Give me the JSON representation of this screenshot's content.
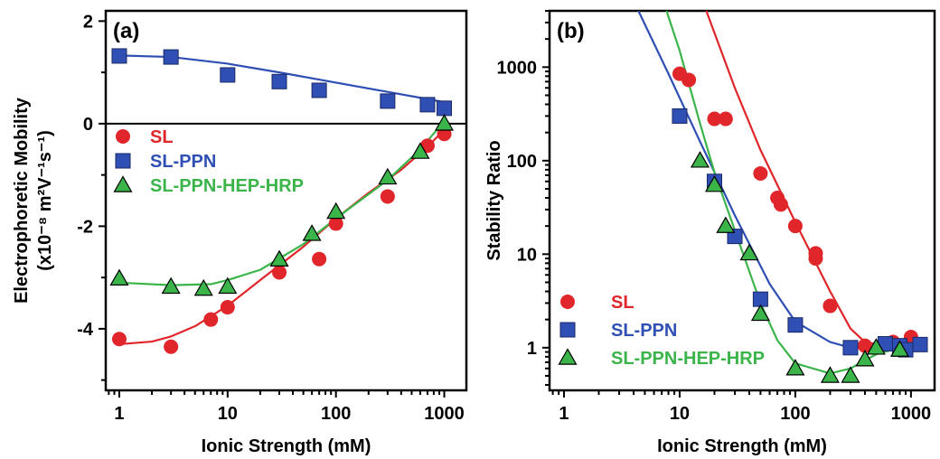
{
  "chart_data": [
    {
      "type": "scatter",
      "panel_label": "(a)",
      "xlabel": "Ionic Strength (mM)",
      "ylabel_line1": "Electrophoretic Mobility",
      "ylabel_line2": "(x10⁻⁸ m²V⁻¹s⁻¹)",
      "xscale": "log",
      "xlim": [
        0.75,
        1600
      ],
      "ylim": [
        -5.2,
        2.2
      ],
      "xticks": [
        1,
        10,
        100,
        1000
      ],
      "xtick_labels": [
        "1",
        "10",
        "100",
        "1000"
      ],
      "yticks": [
        2,
        0,
        -2,
        -4
      ],
      "ytick_labels": [
        "2",
        "0",
        "-2",
        "-4"
      ],
      "zero_line": true,
      "legend_position": "center-left",
      "series": [
        {
          "name": "SL",
          "color": "#e0262b",
          "marker": "circle",
          "points": [
            [
              1,
              -4.2
            ],
            [
              3,
              -4.35
            ],
            [
              7,
              -3.82
            ],
            [
              10,
              -3.58
            ],
            [
              30,
              -2.9
            ],
            [
              70,
              -2.64
            ],
            [
              100,
              -1.95
            ],
            [
              300,
              -1.42
            ],
            [
              700,
              -0.43
            ],
            [
              1000,
              -0.2
            ]
          ],
          "fit": [
            [
              1,
              -4.3
            ],
            [
              2,
              -4.25
            ],
            [
              3,
              -4.15
            ],
            [
              5,
              -3.95
            ],
            [
              10,
              -3.55
            ],
            [
              20,
              -3.05
            ],
            [
              50,
              -2.4
            ],
            [
              100,
              -1.85
            ],
            [
              200,
              -1.35
            ],
            [
              400,
              -0.9
            ],
            [
              700,
              -0.45
            ],
            [
              1000,
              -0.12
            ]
          ]
        },
        {
          "name": "SL-PPN",
          "color": "#2f4fb5",
          "marker": "square",
          "points": [
            [
              1,
              1.32
            ],
            [
              3,
              1.3
            ],
            [
              10,
              0.95
            ],
            [
              30,
              0.82
            ],
            [
              70,
              0.65
            ],
            [
              300,
              0.44
            ],
            [
              700,
              0.37
            ],
            [
              1000,
              0.3
            ]
          ],
          "fit": [
            [
              1,
              1.33
            ],
            [
              3,
              1.3
            ],
            [
              10,
              1.17
            ],
            [
              30,
              1.0
            ],
            [
              100,
              0.8
            ],
            [
              300,
              0.62
            ],
            [
              700,
              0.48
            ],
            [
              1000,
              0.42
            ]
          ]
        },
        {
          "name": "SL-PPN-HEP-HRP",
          "color": "#3bb54a",
          "marker": "triangle",
          "points": [
            [
              1,
              -3.02
            ],
            [
              3,
              -3.18
            ],
            [
              6,
              -3.22
            ],
            [
              10,
              -3.18
            ],
            [
              30,
              -2.65
            ],
            [
              60,
              -2.15
            ],
            [
              100,
              -1.72
            ],
            [
              300,
              -1.05
            ],
            [
              600,
              -0.55
            ],
            [
              1000,
              0.0
            ]
          ],
          "fit": [
            [
              1,
              -3.1
            ],
            [
              3,
              -3.15
            ],
            [
              7,
              -3.13
            ],
            [
              10,
              -3.05
            ],
            [
              20,
              -2.85
            ],
            [
              50,
              -2.35
            ],
            [
              100,
              -1.85
            ],
            [
              300,
              -1.1
            ],
            [
              600,
              -0.5
            ],
            [
              1000,
              0.05
            ]
          ]
        }
      ]
    },
    {
      "type": "scatter",
      "panel_label": "(b)",
      "xlabel": "Ionic Strength (mM)",
      "ylabel": "Stability Ratio",
      "xscale": "log",
      "yscale": "log",
      "xlim": [
        0.75,
        1600
      ],
      "ylim": [
        0.35,
        4000
      ],
      "xticks": [
        1,
        10,
        100,
        1000
      ],
      "xtick_labels": [
        "1",
        "10",
        "100",
        "1000"
      ],
      "yticks": [
        1,
        10,
        100,
        1000
      ],
      "ytick_labels": [
        "1",
        "10",
        "100",
        "1000"
      ],
      "legend_position": "bottom-left",
      "series": [
        {
          "name": "SL",
          "color": "#e0262b",
          "marker": "circle",
          "points": [
            [
              10,
              850
            ],
            [
              12,
              730
            ],
            [
              20,
              280
            ],
            [
              25,
              280
            ],
            [
              50,
              73
            ],
            [
              70,
              40
            ],
            [
              75,
              34
            ],
            [
              100,
              20
            ],
            [
              150,
              10.2
            ],
            [
              150,
              9.0
            ],
            [
              200,
              2.8
            ],
            [
              400,
              1.05
            ],
            [
              700,
              1.15
            ],
            [
              1000,
              1.3
            ]
          ],
          "fit": [
            [
              17,
              4000
            ],
            [
              30,
              600
            ],
            [
              50,
              130
            ],
            [
              100,
              22
            ],
            [
              200,
              4.0
            ],
            [
              300,
              1.6
            ],
            [
              400,
              1.15
            ],
            [
              600,
              1.05
            ],
            [
              1000,
              1.05
            ]
          ]
        },
        {
          "name": "SL-PPN",
          "color": "#2f4fb5",
          "marker": "square",
          "points": [
            [
              10,
              300
            ],
            [
              20,
              60
            ],
            [
              30,
              15.5
            ],
            [
              50,
              3.3
            ],
            [
              100,
              1.75
            ],
            [
              300,
              1.0
            ],
            [
              600,
              1.1
            ],
            [
              800,
              1.05
            ],
            [
              900,
              0.95
            ],
            [
              1200,
              1.08
            ]
          ],
          "fit": [
            [
              4.4,
              4000
            ],
            [
              8,
              850
            ],
            [
              15,
              160
            ],
            [
              30,
              26
            ],
            [
              60,
              4.8
            ],
            [
              100,
              1.9
            ],
            [
              200,
              1.15
            ],
            [
              300,
              1.0
            ],
            [
              500,
              1.0
            ],
            [
              1000,
              1.05
            ]
          ]
        },
        {
          "name": "SL-PPN-HEP-HRP",
          "color": "#3bb54a",
          "marker": "triangle",
          "points": [
            [
              15,
              100
            ],
            [
              20,
              55
            ],
            [
              25,
              20
            ],
            [
              40,
              10.2
            ],
            [
              50,
              2.3
            ],
            [
              100,
              0.6
            ],
            [
              200,
              0.5
            ],
            [
              300,
              0.5
            ],
            [
              400,
              0.75
            ],
            [
              500,
              1.0
            ],
            [
              800,
              0.95
            ]
          ],
          "fit": [
            [
              7.7,
              4000
            ],
            [
              10,
              1500
            ],
            [
              15,
              250
            ],
            [
              20,
              75
            ],
            [
              30,
              18
            ],
            [
              50,
              3.0
            ],
            [
              70,
              1.2
            ],
            [
              100,
              0.68
            ],
            [
              200,
              0.53
            ],
            [
              300,
              0.6
            ],
            [
              500,
              0.85
            ],
            [
              800,
              1.0
            ]
          ]
        }
      ]
    }
  ]
}
